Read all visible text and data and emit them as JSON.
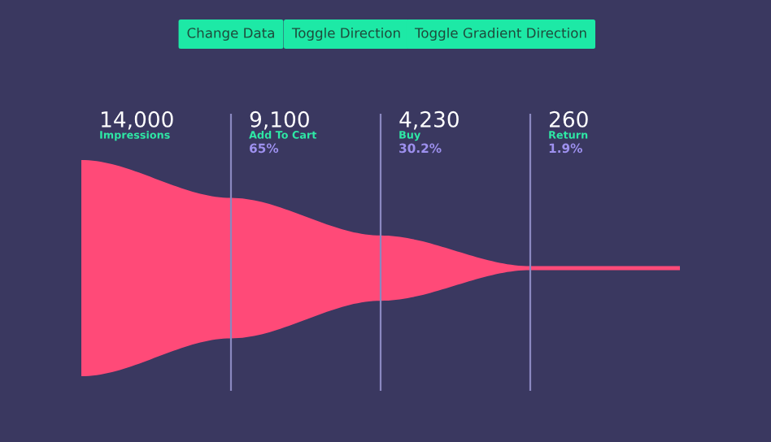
{
  "chart_data": {
    "type": "other",
    "categories": [
      "Impressions",
      "Add To Cart",
      "Buy",
      "Return"
    ],
    "values": [
      14000,
      9100,
      4230,
      260
    ],
    "value_labels": [
      "14,000",
      "9,100",
      "4,230",
      "260"
    ],
    "color": "#ff4a78",
    "annotations": [
      "Change Data",
      "Toggle Direction",
      "Toggle Gradient Direction",
      {
        "text": "65%",
        "x": "Add To Cart"
      },
      {
        "text": "30.2%",
        "x": "Buy"
      },
      {
        "text": "1.9%",
        "x": "Return"
      }
    ]
  }
}
